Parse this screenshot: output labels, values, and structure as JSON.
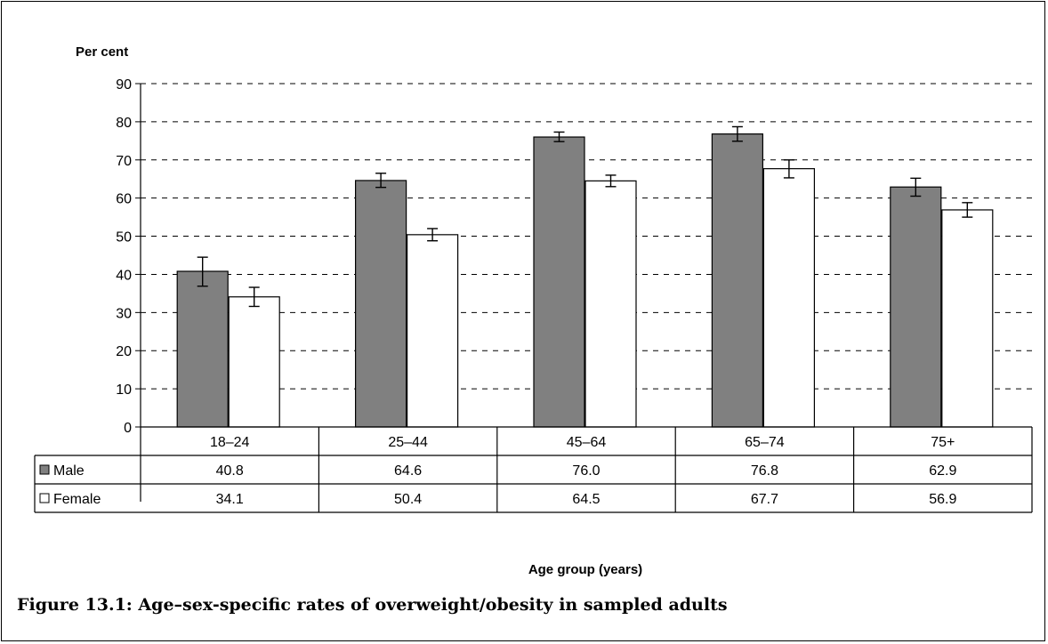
{
  "chart_data": {
    "type": "bar",
    "ylabel": "Per cent",
    "xlabel": "Age group (years)",
    "ylim": [
      0,
      90
    ],
    "yticks": [
      "0",
      "10",
      "20",
      "30",
      "40",
      "50",
      "60",
      "70",
      "80",
      "90"
    ],
    "grid": true,
    "categories": [
      "18–24",
      "25–44",
      "45–64",
      "65–74",
      "75+"
    ],
    "series": [
      {
        "name": "Male",
        "color": "#808080",
        "values": [
          40.8,
          64.6,
          76.0,
          76.8,
          62.9
        ],
        "value_labels": [
          "40.8",
          "64.6",
          "76.0",
          "76.8",
          "62.9"
        ],
        "error_low": [
          36.9,
          62.8,
          74.8,
          74.9,
          60.5
        ],
        "error_high": [
          44.5,
          66.5,
          77.3,
          78.7,
          65.2
        ]
      },
      {
        "name": "Female",
        "color": "#ffffff",
        "values": [
          34.1,
          50.4,
          64.5,
          67.7,
          56.9
        ],
        "value_labels": [
          "34.1",
          "50.4",
          "64.5",
          "67.7",
          "56.9"
        ],
        "error_low": [
          31.6,
          48.8,
          63.0,
          65.3,
          55.0
        ],
        "error_high": [
          36.6,
          52.0,
          66.0,
          70.0,
          58.8
        ]
      }
    ],
    "legend": "data-table"
  },
  "caption": "Figure 13.1: Age–sex-specific rates of overweight/obesity in sampled adults"
}
